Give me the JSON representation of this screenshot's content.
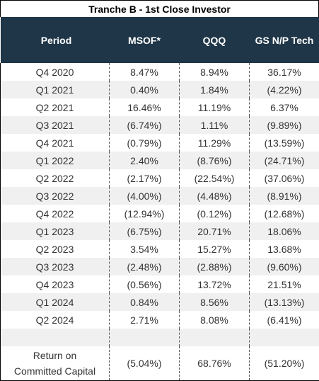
{
  "title": "Tranche B - 1st Close Investor",
  "headers": [
    "Period",
    "MSOF*",
    "QQQ",
    "GS N/P Tech"
  ],
  "rows": [
    {
      "period": "Q4 2020",
      "msof": "8.47%",
      "qqq": "8.94%",
      "gs": "36.17%"
    },
    {
      "period": "Q1 2021",
      "msof": "0.40%",
      "qqq": "1.84%",
      "gs": "(4.22%)"
    },
    {
      "period": "Q2 2021",
      "msof": "16.46%",
      "qqq": "11.19%",
      "gs": "6.37%"
    },
    {
      "period": "Q3 2021",
      "msof": "(6.74%)",
      "qqq": "1.11%",
      "gs": "(9.89%)"
    },
    {
      "period": "Q4 2021",
      "msof": "(0.79%)",
      "qqq": "11.29%",
      "gs": "(13.59%)"
    },
    {
      "period": "Q1 2022",
      "msof": "2.40%",
      "qqq": "(8.76%)",
      "gs": "(24.71%)"
    },
    {
      "period": "Q2 2022",
      "msof": "(2.17%)",
      "qqq": "(22.54%)",
      "gs": "(37.06%)"
    },
    {
      "period": "Q3 2022",
      "msof": "(4.00%)",
      "qqq": "(4.48%)",
      "gs": "(8.91%)"
    },
    {
      "period": "Q4 2022",
      "msof": "(12.94%)",
      "qqq": "(0.12%)",
      "gs": "(12.68%)"
    },
    {
      "period": "Q1 2023",
      "msof": "(6.75%)",
      "qqq": "20.71%",
      "gs": "18.06%"
    },
    {
      "period": "Q2 2023",
      "msof": "3.54%",
      "qqq": "15.27%",
      "gs": "13.68%"
    },
    {
      "period": "Q3 2023",
      "msof": "(2.48%)",
      "qqq": "(2.88%)",
      "gs": "(9.60%)"
    },
    {
      "period": "Q4 2023",
      "msof": "(0.56%)",
      "qqq": "13.72%",
      "gs": "21.51%"
    },
    {
      "period": "Q1 2024",
      "msof": "0.84%",
      "qqq": "8.56%",
      "gs": "(13.13%)"
    },
    {
      "period": "Q2 2024",
      "msof": "2.71%",
      "qqq": "8.08%",
      "gs": "(6.41%)"
    }
  ],
  "total": {
    "label_line1": "Return on",
    "label_line2": "Committed Capital",
    "msof": "(5.04%)",
    "qqq": "68.76%",
    "gs": "(51.20%)"
  },
  "colors": {
    "header_bg": "#1f3648",
    "header_text": "#ffffff",
    "shade": "#f0f0f0"
  }
}
